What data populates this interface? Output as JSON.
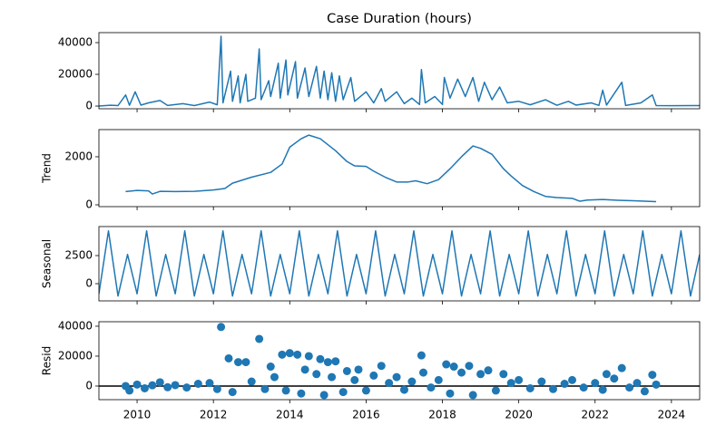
{
  "chart_data": [
    {
      "type": "line",
      "title": "Case Duration (hours)",
      "color": "#1f77b4",
      "x": [
        2009.0,
        2009.3,
        2009.5,
        2009.7,
        2009.8,
        2009.95,
        2010.1,
        2010.3,
        2010.6,
        2010.8,
        2011.2,
        2011.5,
        2011.9,
        2012.1,
        2012.2,
        2012.25,
        2012.45,
        2012.5,
        2012.65,
        2012.7,
        2012.85,
        2012.9,
        2013.1,
        2013.2,
        2013.25,
        2013.45,
        2013.5,
        2013.7,
        2013.75,
        2013.9,
        2013.95,
        2014.15,
        2014.2,
        2014.4,
        2014.5,
        2014.7,
        2014.8,
        2014.9,
        2015.0,
        2015.1,
        2015.2,
        2015.3,
        2015.4,
        2015.6,
        2015.7,
        2016.0,
        2016.2,
        2016.4,
        2016.5,
        2016.8,
        2017.0,
        2017.2,
        2017.4,
        2017.45,
        2017.55,
        2017.8,
        2018.0,
        2018.05,
        2018.2,
        2018.4,
        2018.6,
        2018.8,
        2018.95,
        2019.1,
        2019.3,
        2019.5,
        2019.7,
        2020.0,
        2020.3,
        2020.7,
        2021.0,
        2021.3,
        2021.5,
        2021.9,
        2022.1,
        2022.2,
        2022.3,
        2022.7,
        2022.8,
        2023.2,
        2023.5,
        2023.6,
        2024.0,
        2024.74
      ],
      "values": [
        0,
        500,
        300,
        7000,
        500,
        9000,
        600,
        2000,
        3500,
        400,
        1500,
        300,
        2500,
        800,
        44000,
        2000,
        22000,
        3000,
        19000,
        2000,
        20000,
        3000,
        5000,
        36000,
        4000,
        16000,
        6000,
        27000,
        5000,
        29000,
        7000,
        28000,
        5000,
        24000,
        6000,
        25000,
        5000,
        22000,
        4000,
        21000,
        3000,
        19000,
        4000,
        18000,
        3000,
        9000,
        2000,
        11000,
        3000,
        9000,
        1500,
        5000,
        1000,
        23000,
        2000,
        6000,
        1000,
        18000,
        5000,
        17000,
        6000,
        18000,
        3000,
        15000,
        4000,
        12000,
        2000,
        3000,
        800,
        4000,
        500,
        3000,
        600,
        2000,
        400,
        10000,
        600,
        15000,
        400,
        2000,
        7000,
        300,
        200,
        300
      ],
      "xlim": [
        2009.0,
        2024.74
      ],
      "xticks": [
        2010,
        2012,
        2014,
        2016,
        2018,
        2020,
        2022,
        2024
      ],
      "ylim": [
        -1700,
        46300
      ],
      "yticks": [
        0,
        20000,
        40000
      ]
    },
    {
      "type": "line",
      "ylabel": "Trend",
      "color": "#1f77b4",
      "x": [
        2009.7,
        2010.0,
        2010.3,
        2010.4,
        2010.6,
        2011.0,
        2011.5,
        2012.0,
        2012.3,
        2012.5,
        2013.0,
        2013.5,
        2013.8,
        2014.0,
        2014.3,
        2014.5,
        2014.8,
        2015.2,
        2015.5,
        2015.7,
        2016.0,
        2016.2,
        2016.5,
        2016.8,
        2017.1,
        2017.3,
        2017.6,
        2017.9,
        2018.2,
        2018.5,
        2018.8,
        2019.0,
        2019.3,
        2019.6,
        2019.8,
        2020.1,
        2020.4,
        2020.7,
        2021.0,
        2021.4,
        2021.6,
        2021.8,
        2022.2,
        2022.6,
        2023.0,
        2023.3,
        2023.6
      ],
      "values": [
        550,
        600,
        580,
        450,
        560,
        550,
        560,
        620,
        680,
        900,
        1150,
        1350,
        1700,
        2400,
        2750,
        2900,
        2750,
        2250,
        1800,
        1620,
        1600,
        1400,
        1150,
        950,
        950,
        1000,
        880,
        1050,
        1500,
        2000,
        2450,
        2350,
        2100,
        1500,
        1200,
        800,
        550,
        350,
        300,
        270,
        150,
        200,
        220,
        190,
        170,
        150,
        130
      ],
      "xlim": [
        2009.0,
        2024.74
      ],
      "xticks": [
        2010,
        2012,
        2014,
        2016,
        2018,
        2020,
        2022,
        2024
      ],
      "ylim": [
        -75,
        3130
      ],
      "yticks": [
        0,
        2000
      ]
    },
    {
      "type": "line",
      "ylabel": "Seasonal",
      "color": "#1f77b4",
      "x": [
        2009.0,
        2009.25,
        2009.5,
        2009.75,
        2010.0,
        2010.25,
        2010.5,
        2010.75,
        2011.0,
        2011.25,
        2011.5,
        2011.75,
        2012.0,
        2012.25,
        2012.5,
        2012.75,
        2013.0,
        2013.25,
        2013.5,
        2013.75,
        2014.0,
        2014.25,
        2014.5,
        2014.75,
        2015.0,
        2015.25,
        2015.5,
        2015.75,
        2016.0,
        2016.25,
        2016.5,
        2016.75,
        2017.0,
        2017.25,
        2017.5,
        2017.75,
        2018.0,
        2018.25,
        2018.5,
        2018.75,
        2019.0,
        2019.25,
        2019.5,
        2019.75,
        2020.0,
        2020.25,
        2020.5,
        2020.75,
        2021.0,
        2021.25,
        2021.5,
        2021.75,
        2022.0,
        2022.25,
        2022.5,
        2022.75,
        2023.0,
        2023.25,
        2023.5,
        2023.75,
        2024.0,
        2024.25,
        2024.5,
        2024.74
      ],
      "values": [
        -900,
        4700,
        -1100,
        2600,
        -900,
        4700,
        -1100,
        2600,
        -900,
        4700,
        -1100,
        2600,
        -900,
        4700,
        -1100,
        2600,
        -900,
        4700,
        -1100,
        2600,
        -900,
        4700,
        -1100,
        2600,
        -900,
        4700,
        -1100,
        2600,
        -900,
        4700,
        -1100,
        2600,
        -900,
        4700,
        -1100,
        2600,
        -900,
        4700,
        -1100,
        2600,
        -900,
        4700,
        -1100,
        2600,
        -900,
        4700,
        -1100,
        2600,
        -900,
        4700,
        -1100,
        2600,
        -900,
        4700,
        -1100,
        2600,
        -900,
        4700,
        -1100,
        2600,
        -900,
        4700,
        -1100,
        2600
      ],
      "xlim": [
        2009.0,
        2024.74
      ],
      "xticks": [
        2010,
        2012,
        2014,
        2016,
        2018,
        2020,
        2022,
        2024
      ],
      "ylim": [
        -1530,
        5080
      ],
      "yticks": [
        0,
        2500
      ]
    },
    {
      "type": "scatter",
      "ylabel": "Resid",
      "color": "#1f77b4",
      "hline": 0,
      "x": [
        2009.7,
        2009.8,
        2010.0,
        2010.2,
        2010.4,
        2010.6,
        2010.8,
        2011.0,
        2011.3,
        2011.6,
        2011.9,
        2012.1,
        2012.2,
        2012.4,
        2012.5,
        2012.65,
        2012.85,
        2013.0,
        2013.2,
        2013.35,
        2013.5,
        2013.6,
        2013.8,
        2013.9,
        2014.0,
        2014.2,
        2014.3,
        2014.4,
        2014.5,
        2014.7,
        2014.8,
        2014.9,
        2015.0,
        2015.1,
        2015.2,
        2015.4,
        2015.5,
        2015.7,
        2015.8,
        2016.0,
        2016.2,
        2016.4,
        2016.6,
        2016.8,
        2017.0,
        2017.2,
        2017.45,
        2017.5,
        2017.7,
        2017.9,
        2018.1,
        2018.2,
        2018.3,
        2018.5,
        2018.7,
        2018.8,
        2019.0,
        2019.2,
        2019.4,
        2019.6,
        2019.8,
        2020.0,
        2020.3,
        2020.6,
        2020.9,
        2021.2,
        2021.4,
        2021.7,
        2022.0,
        2022.2,
        2022.3,
        2022.5,
        2022.7,
        2022.9,
        2023.1,
        2023.3,
        2023.5,
        2023.6
      ],
      "values": [
        0,
        -3000,
        1000,
        -1500,
        500,
        2500,
        -800,
        600,
        -1000,
        1500,
        2000,
        -2000,
        39500,
        18500,
        -4000,
        16000,
        16000,
        3000,
        31500,
        -2000,
        13000,
        6000,
        21000,
        -3000,
        22000,
        21000,
        -5000,
        11000,
        20000,
        8000,
        18000,
        -6000,
        16000,
        6000,
        16500,
        -4000,
        10000,
        4000,
        11000,
        -3000,
        7000,
        13500,
        2000,
        6000,
        -2500,
        3000,
        20500,
        9000,
        -1000,
        4000,
        14500,
        -5000,
        13000,
        9000,
        13500,
        -6000,
        8000,
        10500,
        -3000,
        8000,
        2000,
        4000,
        -1500,
        3000,
        -2000,
        1500,
        4000,
        -1000,
        2000,
        -2500,
        8000,
        5000,
        12000,
        -1000,
        2000,
        -3500,
        7500,
        1000
      ],
      "xlim": [
        2009.0,
        2024.74
      ],
      "xticks": [
        2010,
        2012,
        2014,
        2016,
        2018,
        2020,
        2022,
        2024
      ],
      "ylim": [
        -9100,
        43000
      ],
      "yticks": [
        0,
        20000,
        40000
      ]
    }
  ]
}
